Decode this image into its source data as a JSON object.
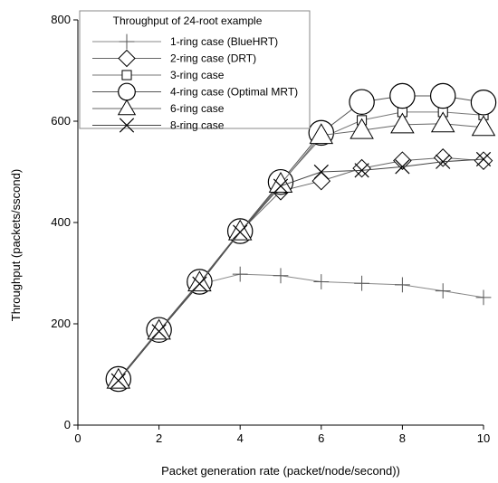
{
  "chart_data": {
    "type": "line",
    "legend_title": "Throughput of 24-root example",
    "xlabel": "Packet generation rate (packet/node/second))",
    "ylabel": "Throughput (packets/sscond)",
    "xlim": [
      0,
      10
    ],
    "ylim": [
      0,
      800
    ],
    "xticks": [
      0,
      2,
      4,
      6,
      8,
      10
    ],
    "yticks": [
      0,
      200,
      400,
      600,
      800
    ],
    "legend_position": "top-left",
    "grid": false,
    "x": [
      1,
      2,
      3,
      4,
      5,
      6,
      7,
      8,
      9,
      10
    ],
    "series": [
      {
        "name": "1-ring case (BlueHRT)",
        "marker": "plus",
        "color": "#888888",
        "values": [
          90,
          187,
          278,
          298,
          295,
          283,
          280,
          277,
          265,
          252
        ]
      },
      {
        "name": "2-ring case (DRT)",
        "marker": "diamond",
        "color": "#666666",
        "values": [
          90,
          187,
          280,
          382,
          462,
          482,
          507,
          522,
          528,
          522
        ]
      },
      {
        "name": "3-ring case",
        "marker": "square",
        "color": "#777777",
        "values": [
          90,
          187,
          282,
          382,
          478,
          567,
          602,
          618,
          618,
          612
        ]
      },
      {
        "name": "4-ring case (Optimal MRT)",
        "marker": "circle",
        "color": "#555555",
        "values": [
          91,
          188,
          283,
          383,
          480,
          577,
          638,
          650,
          650,
          637
        ]
      },
      {
        "name": "6-ring case",
        "marker": "triangle",
        "color": "#666666",
        "values": [
          89,
          186,
          281,
          382,
          476,
          572,
          582,
          593,
          595,
          588
        ]
      },
      {
        "name": "8-ring case",
        "marker": "x",
        "color": "#444444",
        "values": [
          88,
          185,
          279,
          381,
          472,
          500,
          503,
          510,
          520,
          525
        ]
      }
    ]
  }
}
